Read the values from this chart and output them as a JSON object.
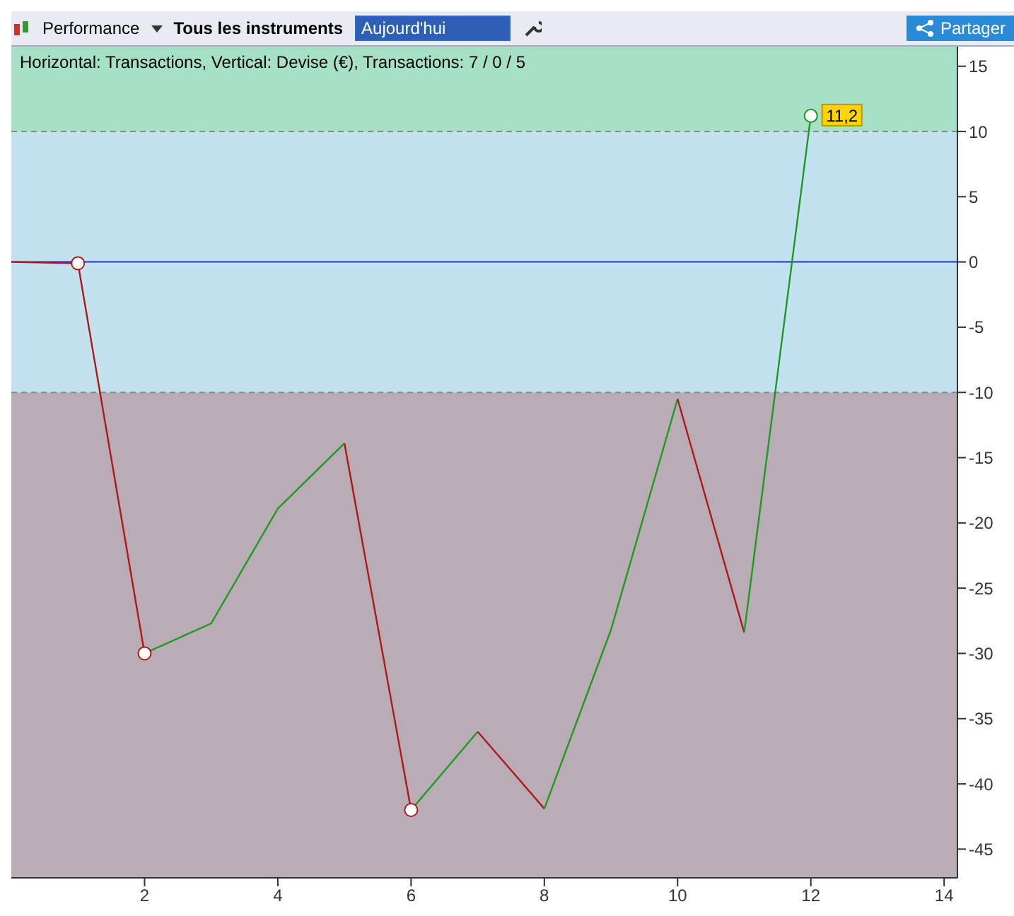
{
  "chart_data": {
    "type": "line",
    "title": "Horizontal: Transactions, Vertical: Devise (€), Transactions: 7 / 0 / 5",
    "annotations": [
      "Performance",
      "Tous les instruments",
      "Aujourd'hui",
      "Partager",
      {
        "text": "11,2",
        "x": 12,
        "y": 11.2
      }
    ],
    "series": [
      {
        "type": "line",
        "color": "#b01818",
        "x": [
          0,
          1,
          2
        ],
        "values": [
          0,
          -0.1,
          -30
        ]
      },
      {
        "type": "line",
        "color": "#1e9a1e",
        "x": [
          2,
          3,
          4,
          5
        ],
        "values": [
          -30,
          -27.7,
          -18.9,
          -13.9
        ]
      },
      {
        "type": "line",
        "color": "#b01818",
        "x": [
          5,
          6
        ],
        "values": [
          -13.9,
          -42
        ]
      },
      {
        "type": "line",
        "color": "#1e9a1e",
        "x": [
          6,
          7
        ],
        "values": [
          -42,
          -36
        ]
      },
      {
        "type": "line",
        "color": "#b01818",
        "x": [
          7,
          8
        ],
        "values": [
          -36,
          -41.9
        ]
      },
      {
        "type": "line",
        "color": "#1e9a1e",
        "x": [
          8,
          9,
          10
        ],
        "values": [
          -41.9,
          -28.2,
          -10.5
        ]
      },
      {
        "type": "line",
        "color": "#b01818",
        "x": [
          10,
          11
        ],
        "values": [
          -10.5,
          -28.4
        ]
      },
      {
        "type": "line",
        "color": "#1e9a1e",
        "x": [
          11,
          12
        ],
        "values": [
          -28.4,
          11.2
        ]
      },
      {
        "type": "scatter",
        "color": "#b01818",
        "x": [
          1,
          2,
          6
        ],
        "values": [
          -0.1,
          -30,
          -42
        ]
      },
      {
        "type": "scatter",
        "color": "#1e9a1e",
        "x": [
          12
        ],
        "values": [
          11.2
        ]
      }
    ],
    "xlim": [
      0,
      14.2
    ],
    "xticks": [
      2,
      4,
      6,
      8,
      10,
      12,
      14
    ],
    "ylim": [
      -47.2,
      16.5
    ],
    "yticks": [
      15,
      10,
      5,
      0,
      -5,
      -10,
      -15,
      -20,
      -25,
      -30,
      -35,
      -40,
      -45
    ],
    "grid": true,
    "line_style": "solid",
    "bands": [
      {
        "axis": "y",
        "from": 10,
        "to": 16.5,
        "color": "#a6e0c6"
      },
      {
        "axis": "y",
        "from": -10,
        "to": 10,
        "color": "#c3e2ef"
      },
      {
        "axis": "y",
        "from": -47.2,
        "to": -10,
        "color": "#b9acb6"
      }
    ],
    "ref_lines": [
      {
        "axis": "y",
        "value": 0,
        "color": "#2233dd",
        "line_style": "solid"
      },
      {
        "axis": "y",
        "value": 10,
        "color": "#888888",
        "line_style": "dashed"
      },
      {
        "axis": "y",
        "value": -10,
        "color": "#888888",
        "line_style": "dashed"
      }
    ]
  }
}
